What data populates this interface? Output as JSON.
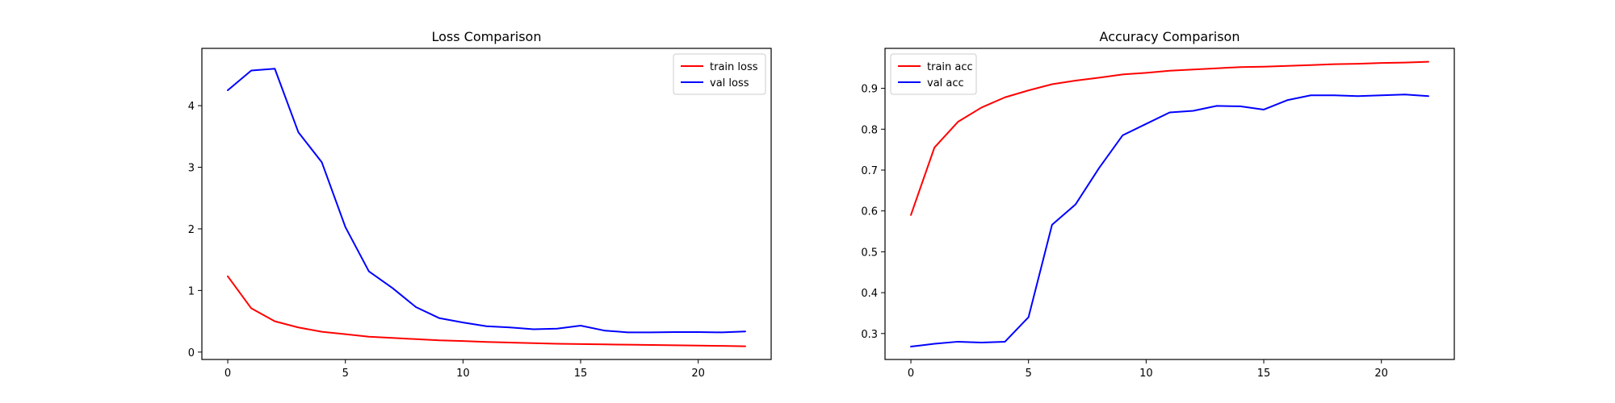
{
  "chart_data": [
    {
      "type": "line",
      "title": "Loss Comparison",
      "xlabel": "",
      "ylabel": "",
      "x": [
        0,
        1,
        2,
        3,
        4,
        5,
        6,
        7,
        8,
        9,
        10,
        11,
        12,
        13,
        14,
        15,
        16,
        17,
        18,
        19,
        20,
        21,
        22
      ],
      "xticks": [
        0,
        5,
        10,
        15,
        20
      ],
      "xtick_labels": [
        "0",
        "5",
        "10",
        "15",
        "20"
      ],
      "xlim": [
        -1.1,
        23.1
      ],
      "yticks": [
        0,
        1,
        2,
        3,
        4
      ],
      "ytick_labels": [
        "0",
        "1",
        "2",
        "3",
        "4"
      ],
      "ylim": [
        -0.12,
        4.93
      ],
      "legend_position": "upper right",
      "grid": false,
      "series": [
        {
          "name": "train loss",
          "color": "#ff0000",
          "values": [
            1.23,
            0.71,
            0.5,
            0.4,
            0.33,
            0.29,
            0.25,
            0.23,
            0.21,
            0.19,
            0.18,
            0.165,
            0.155,
            0.145,
            0.135,
            0.13,
            0.125,
            0.12,
            0.115,
            0.11,
            0.105,
            0.1,
            0.095
          ]
        },
        {
          "name": "val loss",
          "color": "#0000ff",
          "values": [
            4.25,
            4.57,
            4.6,
            3.57,
            3.08,
            2.03,
            1.31,
            1.04,
            0.73,
            0.55,
            0.48,
            0.42,
            0.4,
            0.37,
            0.38,
            0.43,
            0.35,
            0.32,
            0.32,
            0.325,
            0.325,
            0.32,
            0.335
          ]
        }
      ]
    },
    {
      "type": "line",
      "title": "Accuracy Comparison",
      "xlabel": "",
      "ylabel": "",
      "x": [
        0,
        1,
        2,
        3,
        4,
        5,
        6,
        7,
        8,
        9,
        10,
        11,
        12,
        13,
        14,
        15,
        16,
        17,
        18,
        19,
        20,
        21,
        22
      ],
      "xticks": [
        0,
        5,
        10,
        15,
        20
      ],
      "xtick_labels": [
        "0",
        "5",
        "10",
        "15",
        "20"
      ],
      "xlim": [
        -1.1,
        23.1
      ],
      "yticks": [
        0.3,
        0.4,
        0.5,
        0.6,
        0.7,
        0.8,
        0.9
      ],
      "ytick_labels": [
        "0.3",
        "0.4",
        "0.5",
        "0.6",
        "0.7",
        "0.8",
        "0.9"
      ],
      "ylim": [
        0.2365,
        0.9978
      ],
      "legend_position": "upper left",
      "grid": false,
      "series": [
        {
          "name": "train acc",
          "color": "#ff0000",
          "values": [
            0.59,
            0.755,
            0.818,
            0.853,
            0.878,
            0.895,
            0.91,
            0.919,
            0.926,
            0.934,
            0.938,
            0.943,
            0.946,
            0.949,
            0.952,
            0.953,
            0.955,
            0.957,
            0.959,
            0.96,
            0.962,
            0.963,
            0.965
          ]
        },
        {
          "name": "val acc",
          "color": "#0000ff",
          "values": [
            0.268,
            0.275,
            0.28,
            0.278,
            0.28,
            0.34,
            0.566,
            0.616,
            0.705,
            0.785,
            0.813,
            0.841,
            0.845,
            0.857,
            0.856,
            0.848,
            0.871,
            0.883,
            0.883,
            0.881,
            0.883,
            0.885,
            0.881
          ]
        }
      ]
    }
  ]
}
